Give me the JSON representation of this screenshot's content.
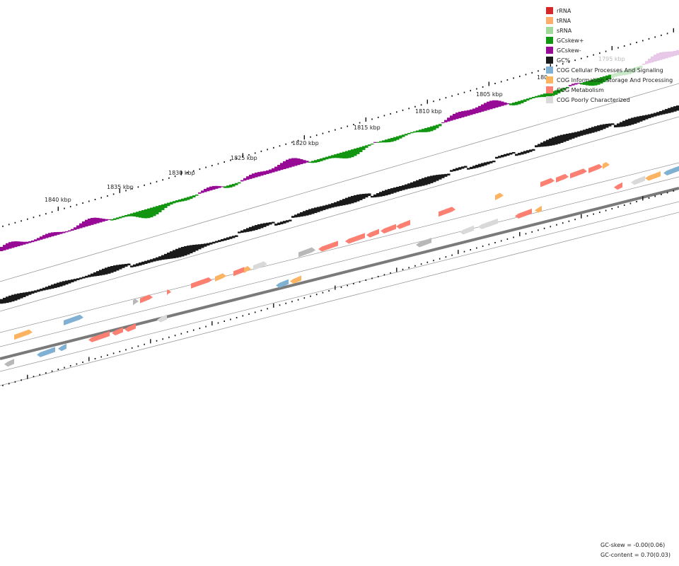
{
  "legend": [
    {
      "label": "rRNA",
      "color": "#d62728"
    },
    {
      "label": "tRNA",
      "color": "#fdae6b"
    },
    {
      "label": "sRNA",
      "color": "#a1d99b"
    },
    {
      "label": "GCskew+",
      "color": "#129611"
    },
    {
      "label": "GCskew-",
      "color": "#960a96"
    },
    {
      "label": "GC%",
      "color": "#1a1a1a"
    },
    {
      "label": "COG Cellular Processes And Signaling",
      "color": "#80b1d3"
    },
    {
      "label": "COG Information Storage And Processing",
      "color": "#fdb462"
    },
    {
      "label": "COG Metabolism",
      "color": "#fb8072"
    },
    {
      "label": "COG Poorly Characterized",
      "color": "#d9d9d9"
    }
  ],
  "ruler": {
    "labels": [
      "1840 kbp",
      "1835 kbp",
      "1830 kbp",
      "1825 kbp",
      "1820 kbp",
      "1815 kbp",
      "1810 kbp",
      "1805 kbp",
      "180",
      "1795 kbp"
    ]
  },
  "stats": {
    "gc_skew": "GC-skew = -0.00(0.06)",
    "gc_content": "GC-content = 0.70(0.03)"
  }
}
